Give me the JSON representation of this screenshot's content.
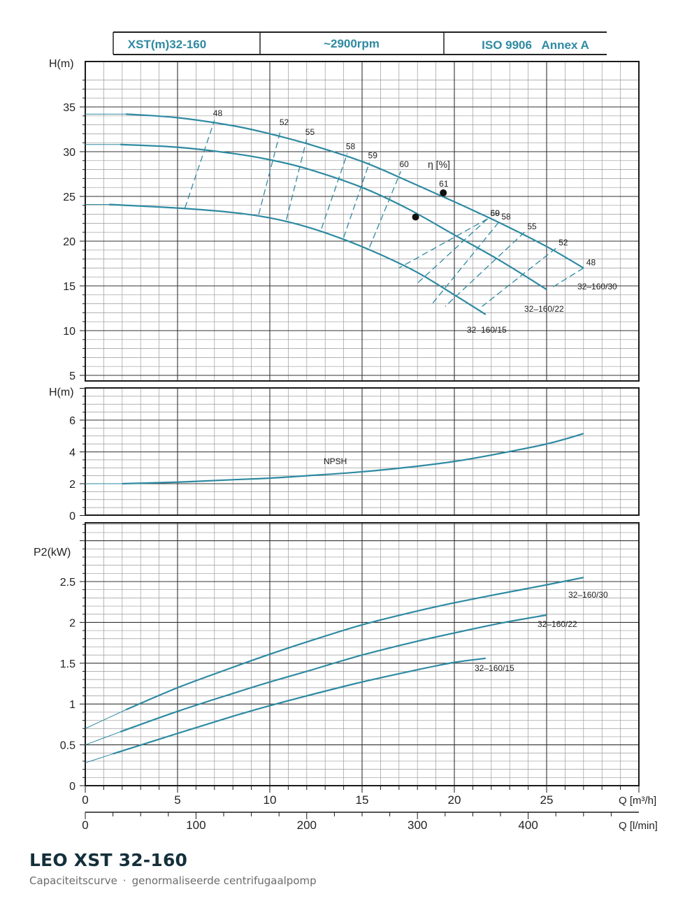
{
  "header": {
    "model": "XST(m)32-160",
    "speed": "~2900rpm",
    "standard": "ISO 9906   Annex A"
  },
  "footer": {
    "title": "LEO XST 32-160",
    "subtitle_left": "Capaciteitscurve",
    "subtitle_sep": "·",
    "subtitle_right": "genormaliseerde centrifugaalpomp"
  },
  "colors": {
    "curve": "#2e8aa2",
    "grid_major": "#333333",
    "grid_minor": "#9a9a9a",
    "header_text": "#2e8aa2",
    "title": "#14303a"
  },
  "chart_data": [
    {
      "type": "line",
      "panel": "head",
      "ylabel": "H(m)",
      "ylim": [
        5,
        38
      ],
      "yticks": [
        "5",
        "10",
        "15",
        "20",
        "25",
        "30",
        "35"
      ],
      "xlim": [
        0,
        30
      ],
      "efficiency_label": "η [%]",
      "series": [
        {
          "name": "32-160/30",
          "x": [
            0,
            2.2,
            5,
            8,
            10,
            12,
            15,
            17.5,
            20,
            22.5,
            25,
            27
          ],
          "y": [
            34.2,
            34.2,
            33.8,
            32.9,
            32.0,
            30.9,
            28.9,
            26.7,
            24.4,
            22.0,
            19.4,
            17.0
          ]
        },
        {
          "name": "32-160/22",
          "x": [
            0,
            1.9,
            5,
            8,
            10,
            12,
            15,
            17.5,
            20,
            22.5,
            25
          ],
          "y": [
            30.8,
            30.8,
            30.5,
            29.8,
            29.1,
            28.1,
            26.0,
            23.6,
            20.7,
            17.8,
            14.6
          ]
        },
        {
          "name": "32-160/15",
          "x": [
            0,
            1.3,
            5,
            8,
            10,
            12,
            14,
            16,
            18,
            20,
            21.7
          ],
          "y": [
            24.1,
            24.1,
            23.7,
            23.2,
            22.6,
            21.6,
            20.2,
            18.5,
            16.5,
            14.0,
            11.8
          ]
        }
      ],
      "efficiency": [
        {
          "eta": "48",
          "left": [
            [
              5.4,
              23.7
            ],
            [
              7.0,
              33.5
            ]
          ],
          "right": [
            [
              27.0,
              17.0
            ],
            [
              25.2,
              14.7
            ]
          ]
        },
        {
          "eta": "52",
          "left": [
            [
              9.4,
              23.0
            ],
            [
              10.6,
              32.5
            ]
          ],
          "right": [
            [
              25.5,
              19.2
            ],
            [
              21.5,
              12.7
            ]
          ]
        },
        {
          "eta": "55",
          "left": [
            [
              10.9,
              22.4
            ],
            [
              12.0,
              31.4
            ]
          ],
          "right": [
            [
              23.8,
              21.0
            ],
            [
              19.5,
              12.7
            ]
          ]
        },
        {
          "eta": "58",
          "left": [
            [
              12.8,
              21.4
            ],
            [
              14.2,
              29.8
            ]
          ],
          "right": [
            [
              22.4,
              22.1
            ],
            [
              18.8,
              13.0
            ]
          ]
        },
        {
          "eta": "59",
          "left": [
            [
              14.0,
              20.4
            ],
            [
              15.4,
              28.8
            ]
          ],
          "right": [
            [
              21.8,
              22.5
            ],
            [
              18.0,
              15.3
            ]
          ]
        },
        {
          "eta": "60",
          "left": [
            [
              15.4,
              19.3
            ],
            [
              17.1,
              27.8
            ]
          ],
          "right": [
            [
              21.8,
              22.5
            ],
            [
              17.0,
              17.0
            ]
          ]
        }
      ],
      "bep_label": "61",
      "bep_points": [
        [
          19.4,
          25.4
        ],
        [
          17.9,
          22.7
        ]
      ],
      "series_labels": [
        "32–160/30",
        "32–160/22",
        "32–160/15"
      ]
    },
    {
      "type": "line",
      "panel": "npsh",
      "ylabel": "H(m)",
      "ylim": [
        0,
        8
      ],
      "yticks": [
        "0",
        "2",
        "4",
        "6"
      ],
      "series": [
        {
          "name": "NPSH",
          "x": [
            0,
            2,
            5,
            8,
            10,
            12,
            15,
            18,
            20,
            22,
            25,
            27
          ],
          "y": [
            2.0,
            2.0,
            2.1,
            2.25,
            2.35,
            2.5,
            2.75,
            3.1,
            3.4,
            3.8,
            4.5,
            5.15
          ]
        }
      ]
    },
    {
      "type": "line",
      "panel": "power",
      "ylabel": "P2(kW)",
      "ylim": [
        0,
        3.2
      ],
      "yticks": [
        "0",
        "0.5",
        "1",
        "1.5",
        "2",
        "2.5"
      ],
      "xlabel": "Q [m³/h]",
      "xlim": [
        0,
        30
      ],
      "xticks": [
        "0",
        "5",
        "10",
        "15",
        "20",
        "25"
      ],
      "x2label": "Q [l/min]",
      "x2ticks": [
        "0",
        "100",
        "200",
        "300",
        "400"
      ],
      "series": [
        {
          "name": "32-160/30",
          "x": [
            0,
            2.2,
            5,
            8,
            10,
            12,
            15,
            18,
            20,
            22,
            25,
            27
          ],
          "y": [
            0.7,
            0.93,
            1.2,
            1.45,
            1.61,
            1.76,
            1.97,
            2.14,
            2.24,
            2.33,
            2.46,
            2.55
          ]
        },
        {
          "name": "32-160/22",
          "x": [
            0,
            1.9,
            5,
            8,
            10,
            12,
            15,
            18,
            20,
            22.5,
            25
          ],
          "y": [
            0.5,
            0.66,
            0.91,
            1.13,
            1.27,
            1.4,
            1.6,
            1.77,
            1.87,
            1.99,
            2.09
          ]
        },
        {
          "name": "32-160/15",
          "x": [
            0,
            1.5,
            5,
            8,
            10,
            12,
            15,
            18,
            20,
            21.7
          ],
          "y": [
            0.28,
            0.39,
            0.64,
            0.85,
            0.98,
            1.1,
            1.27,
            1.42,
            1.51,
            1.56
          ]
        }
      ],
      "series_labels": [
        "32–160/30",
        "32–160/22",
        "32–160/15"
      ]
    }
  ]
}
